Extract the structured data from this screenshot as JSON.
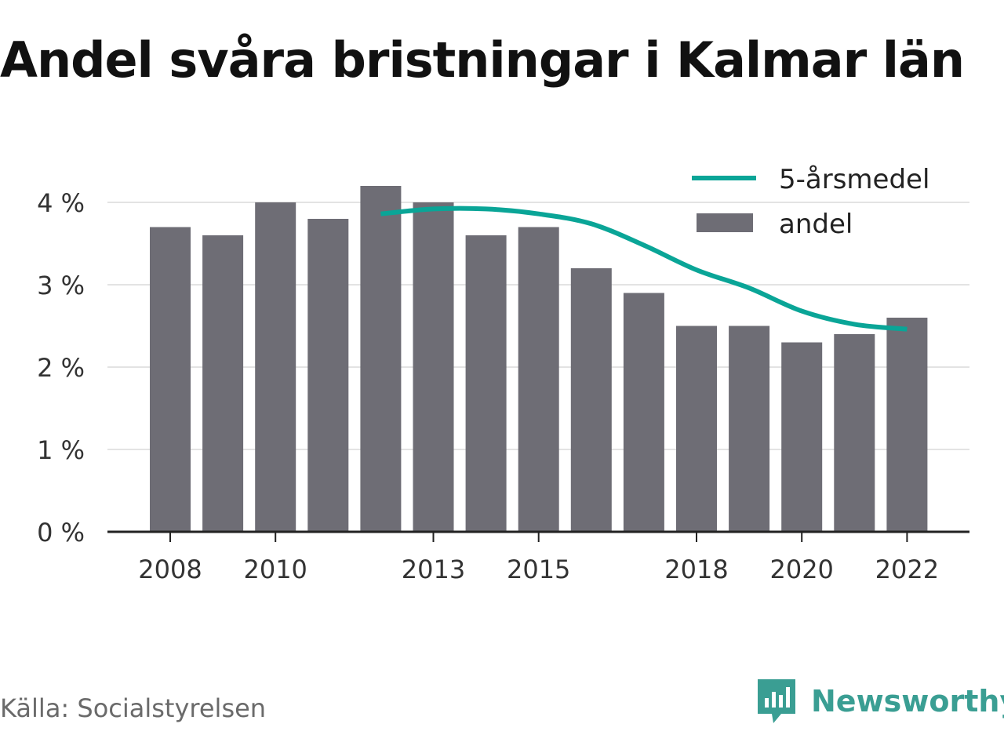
{
  "title": "Andel svåra bristningar i Kalmar län",
  "source": "Källa: Socialstyrelsen",
  "brand": "Newsworthy",
  "colors": {
    "bar": "#6e6d75",
    "line": "#0aa597",
    "grid": "#e3e3e3",
    "axis": "#222222",
    "tick_text": "#333333",
    "brand": "#3a9e93"
  },
  "chart_data": {
    "type": "bar",
    "title": "Andel svåra bristningar i Kalmar län",
    "xlabel": "",
    "ylabel": "",
    "x": [
      2008,
      2009,
      2010,
      2011,
      2012,
      2013,
      2014,
      2015,
      2016,
      2017,
      2018,
      2019,
      2020,
      2021,
      2022
    ],
    "x_tick_labels": [
      "2008",
      "2010",
      "2013",
      "2015",
      "2018",
      "2020",
      "2022"
    ],
    "ylim": [
      0,
      4
    ],
    "y_ticks": [
      0,
      1,
      2,
      3,
      4
    ],
    "y_tick_labels": [
      "0 %",
      "1 %",
      "2 %",
      "3 %",
      "4 %"
    ],
    "grid": true,
    "legend_position": "top-right",
    "series": [
      {
        "name": "andel",
        "type": "bar",
        "values": [
          3.7,
          3.6,
          4.0,
          3.8,
          4.2,
          4.0,
          3.6,
          3.7,
          3.2,
          2.9,
          2.5,
          2.5,
          2.3,
          2.4,
          2.6
        ]
      },
      {
        "name": "5-årsmedel",
        "type": "line",
        "values": [
          null,
          null,
          null,
          null,
          3.86,
          3.92,
          3.92,
          3.86,
          3.74,
          3.48,
          3.18,
          2.96,
          2.68,
          2.52,
          2.46
        ]
      }
    ]
  }
}
